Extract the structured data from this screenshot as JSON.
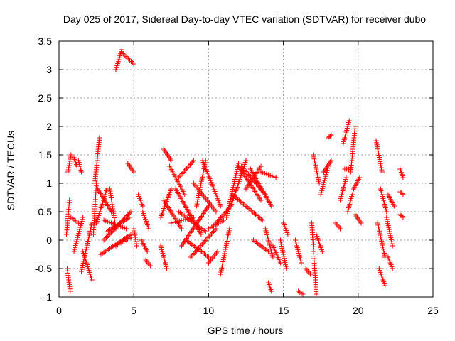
{
  "chart_data": {
    "type": "scatter",
    "title": "Day 025 of 2017, Sidereal Day-to-day VTEC variation (SDTVAR) for receiver dubo",
    "xlabel": "GPS time / hours",
    "ylabel": "SDTVAR / TECUs",
    "xlim": [
      0,
      25
    ],
    "ylim": [
      -1,
      3.5
    ],
    "x_ticks": [
      0,
      5,
      10,
      15,
      20,
      25
    ],
    "x_tick_labels": [
      "0",
      "5",
      "10",
      "15",
      "20",
      "25"
    ],
    "y_ticks": [
      -1,
      -0.5,
      0,
      0.5,
      1,
      1.5,
      2,
      2.5,
      3,
      3.5
    ],
    "y_tick_labels": [
      "-1",
      "-0.5",
      "0",
      "0.5",
      "1",
      "1.5",
      "2",
      "2.5",
      "3",
      "3.5"
    ],
    "grid": true,
    "marker": "plus",
    "color": "#ff0000",
    "series": [
      {
        "name": "SDTVAR",
        "segments": [
          {
            "x": [
              0.5,
              0.7
            ],
            "y": [
              0.1,
              0.7
            ]
          },
          {
            "x": [
              0.55,
              0.75
            ],
            "y": [
              -0.5,
              -0.9
            ]
          },
          {
            "x": [
              0.6,
              0.8
            ],
            "y": [
              1.2,
              1.5
            ]
          },
          {
            "x": [
              0.8,
              1.3
            ],
            "y": [
              0.4,
              0.3
            ]
          },
          {
            "x": [
              1.0,
              1.2
            ],
            "y": [
              1.45,
              1.3
            ]
          },
          {
            "x": [
              1.0,
              1.6
            ],
            "y": [
              -0.2,
              0.4
            ]
          },
          {
            "x": [
              1.3,
              1.5
            ],
            "y": [
              1.4,
              1.2
            ]
          },
          {
            "x": [
              1.5,
              2.2
            ],
            "y": [
              -0.55,
              0.3
            ]
          },
          {
            "x": [
              1.6,
              2.2
            ],
            "y": [
              -0.2,
              -0.7
            ]
          },
          {
            "x": [
              2.3,
              2.5
            ],
            "y": [
              0.1,
              1.0
            ]
          },
          {
            "x": [
              2.4,
              2.7
            ],
            "y": [
              1.0,
              1.8
            ]
          },
          {
            "x": [
              2.5,
              3.2
            ],
            "y": [
              0.3,
              0.9
            ]
          },
          {
            "x": [
              2.6,
              3.5
            ],
            "y": [
              0.9,
              0.5
            ]
          },
          {
            "x": [
              2.8,
              4.8
            ],
            "y": [
              -0.25,
              0.1
            ]
          },
          {
            "x": [
              3.0,
              4.8
            ],
            "y": [
              0.0,
              0.5
            ]
          },
          {
            "x": [
              3.0,
              4.5
            ],
            "y": [
              0.35,
              0.2
            ]
          },
          {
            "x": [
              3.2,
              4.7
            ],
            "y": [
              0.15,
              0.4
            ]
          },
          {
            "x": [
              3.4,
              3.8
            ],
            "y": [
              0.9,
              0.2
            ]
          },
          {
            "x": [
              3.8,
              4.8
            ],
            "y": [
              -0.1,
              0.05
            ]
          },
          {
            "x": [
              3.8,
              4.2
            ],
            "y": [
              3.0,
              3.35
            ]
          },
          {
            "x": [
              4.2,
              5.0
            ],
            "y": [
              3.3,
              3.1
            ]
          },
          {
            "x": [
              4.6,
              5.0
            ],
            "y": [
              1.35,
              1.2
            ]
          },
          {
            "x": [
              5.0,
              5.2
            ],
            "y": [
              0.2,
              -0.1
            ]
          },
          {
            "x": [
              5.3,
              5.6
            ],
            "y": [
              0.8,
              0.6
            ]
          },
          {
            "x": [
              5.6,
              6.0
            ],
            "y": [
              0.5,
              0.2
            ]
          },
          {
            "x": [
              5.5,
              5.9
            ],
            "y": [
              0.0,
              -0.2
            ]
          },
          {
            "x": [
              5.8,
              6.1
            ],
            "y": [
              -0.35,
              -0.45
            ]
          },
          {
            "x": [
              6.8,
              7.5
            ],
            "y": [
              0.4,
              0.9
            ]
          },
          {
            "x": [
              6.8,
              7.2
            ],
            "y": [
              -0.1,
              -0.5
            ]
          },
          {
            "x": [
              7.0,
              7.5
            ],
            "y": [
              1.6,
              1.4
            ]
          },
          {
            "x": [
              7.0,
              8.2
            ],
            "y": [
              0.7,
              0.2
            ]
          },
          {
            "x": [
              7.4,
              8.4
            ],
            "y": [
              1.3,
              0.8
            ]
          },
          {
            "x": [
              7.5,
              9.0
            ],
            "y": [
              0.3,
              0.4
            ]
          },
          {
            "x": [
              7.8,
              9.5
            ],
            "y": [
              0.9,
              0.1
            ]
          },
          {
            "x": [
              8.0,
              9.8
            ],
            "y": [
              0.5,
              0.15
            ]
          },
          {
            "x": [
              8.0,
              9.0
            ],
            "y": [
              1.1,
              1.4
            ]
          },
          {
            "x": [
              8.2,
              10.0
            ],
            "y": [
              -0.1,
              0.6
            ]
          },
          {
            "x": [
              8.5,
              10.0
            ],
            "y": [
              0.0,
              -0.3
            ]
          },
          {
            "x": [
              8.8,
              10.5
            ],
            "y": [
              -0.3,
              0.2
            ]
          },
          {
            "x": [
              9.0,
              10.5
            ],
            "y": [
              1.0,
              0.5
            ]
          },
          {
            "x": [
              9.2,
              9.8
            ],
            "y": [
              0.6,
              1.4
            ]
          },
          {
            "x": [
              9.6,
              10.8
            ],
            "y": [
              1.4,
              0.6
            ]
          },
          {
            "x": [
              10.0,
              11.0
            ],
            "y": [
              0.2,
              0.35
            ]
          },
          {
            "x": [
              10.0,
              10.6
            ],
            "y": [
              -0.4,
              -0.2
            ]
          },
          {
            "x": [
              10.5,
              11.5
            ],
            "y": [
              0.3,
              0.6
            ]
          },
          {
            "x": [
              10.8,
              11.4
            ],
            "y": [
              -0.6,
              0.2
            ]
          },
          {
            "x": [
              11.2,
              12.0
            ],
            "y": [
              0.4,
              1.35
            ]
          },
          {
            "x": [
              11.5,
              12.5
            ],
            "y": [
              0.6,
              1.4
            ]
          },
          {
            "x": [
              11.6,
              13.6
            ],
            "y": [
              0.8,
              0.35
            ]
          },
          {
            "x": [
              12.0,
              13.5
            ],
            "y": [
              1.3,
              0.7
            ]
          },
          {
            "x": [
              12.2,
              13.8
            ],
            "y": [
              1.3,
              0.8
            ]
          },
          {
            "x": [
              12.5,
              13.5
            ],
            "y": [
              0.9,
              1.3
            ]
          },
          {
            "x": [
              12.8,
              14.2
            ],
            "y": [
              1.25,
              0.6
            ]
          },
          {
            "x": [
              13.0,
              14.0
            ],
            "y": [
              0.0,
              -0.2
            ]
          },
          {
            "x": [
              13.5,
              14.5
            ],
            "y": [
              1.2,
              1.1
            ]
          },
          {
            "x": [
              13.8,
              14.3
            ],
            "y": [
              0.2,
              -0.3
            ]
          },
          {
            "x": [
              14.0,
              14.2
            ],
            "y": [
              -0.75,
              -0.9
            ]
          },
          {
            "x": [
              14.3,
              14.8
            ],
            "y": [
              -0.1,
              -0.4
            ]
          },
          {
            "x": [
              14.8,
              15.2
            ],
            "y": [
              0.0,
              -0.5
            ]
          },
          {
            "x": [
              15.0,
              15.3
            ],
            "y": [
              0.3,
              0.1
            ]
          },
          {
            "x": [
              15.8,
              16.2
            ],
            "y": [
              0.0,
              -0.4
            ]
          },
          {
            "x": [
              16.0,
              16.3
            ],
            "y": [
              -0.9,
              -0.95
            ]
          },
          {
            "x": [
              16.5,
              16.8
            ],
            "y": [
              -0.5,
              -0.6
            ]
          },
          {
            "x": [
              16.9,
              17.2
            ],
            "y": [
              0.3,
              -0.95
            ]
          },
          {
            "x": [
              17.0,
              17.4
            ],
            "y": [
              1.5,
              1.0
            ]
          },
          {
            "x": [
              17.2,
              17.6
            ],
            "y": [
              0.1,
              -0.2
            ]
          },
          {
            "x": [
              17.5,
              18.0
            ],
            "y": [
              0.8,
              1.3
            ]
          },
          {
            "x": [
              17.7,
              18.2
            ],
            "y": [
              1.2,
              1.4
            ]
          },
          {
            "x": [
              18.0,
              18.2
            ],
            "y": [
              1.8,
              1.85
            ]
          },
          {
            "x": [
              18.5,
              18.8
            ],
            "y": [
              0.3,
              0.2
            ]
          },
          {
            "x": [
              18.8,
              19.2
            ],
            "y": [
              0.7,
              1.1
            ]
          },
          {
            "x": [
              19.0,
              19.4
            ],
            "y": [
              1.7,
              2.1
            ]
          },
          {
            "x": [
              19.1,
              19.5
            ],
            "y": [
              1.25,
              1.25
            ]
          },
          {
            "x": [
              19.3,
              19.6
            ],
            "y": [
              0.5,
              0.8
            ]
          },
          {
            "x": [
              19.5,
              19.8
            ],
            "y": [
              1.2,
              2.0
            ]
          },
          {
            "x": [
              19.7,
              20.1
            ],
            "y": [
              0.9,
              1.1
            ]
          },
          {
            "x": [
              19.8,
              20.2
            ],
            "y": [
              0.45,
              0.3
            ]
          },
          {
            "x": [
              21.2,
              21.6
            ],
            "y": [
              1.75,
              1.2
            ]
          },
          {
            "x": [
              21.3,
              21.8
            ],
            "y": [
              0.3,
              -0.3
            ]
          },
          {
            "x": [
              21.4,
              21.8
            ],
            "y": [
              -0.5,
              -0.8
            ]
          },
          {
            "x": [
              21.5,
              21.9
            ],
            "y": [
              0.9,
              0.5
            ]
          },
          {
            "x": [
              21.9,
              22.3
            ],
            "y": [
              0.4,
              -0.1
            ]
          },
          {
            "x": [
              22.0,
              22.3
            ],
            "y": [
              -0.3,
              -0.5
            ]
          },
          {
            "x": [
              22.0,
              22.4
            ],
            "y": [
              0.8,
              0.6
            ]
          },
          {
            "x": [
              22.8,
              23.0
            ],
            "y": [
              1.25,
              1.1
            ]
          },
          {
            "x": [
              22.8,
              23.0
            ],
            "y": [
              0.85,
              0.8
            ]
          },
          {
            "x": [
              22.8,
              23.0
            ],
            "y": [
              0.45,
              0.4
            ]
          }
        ]
      }
    ]
  }
}
